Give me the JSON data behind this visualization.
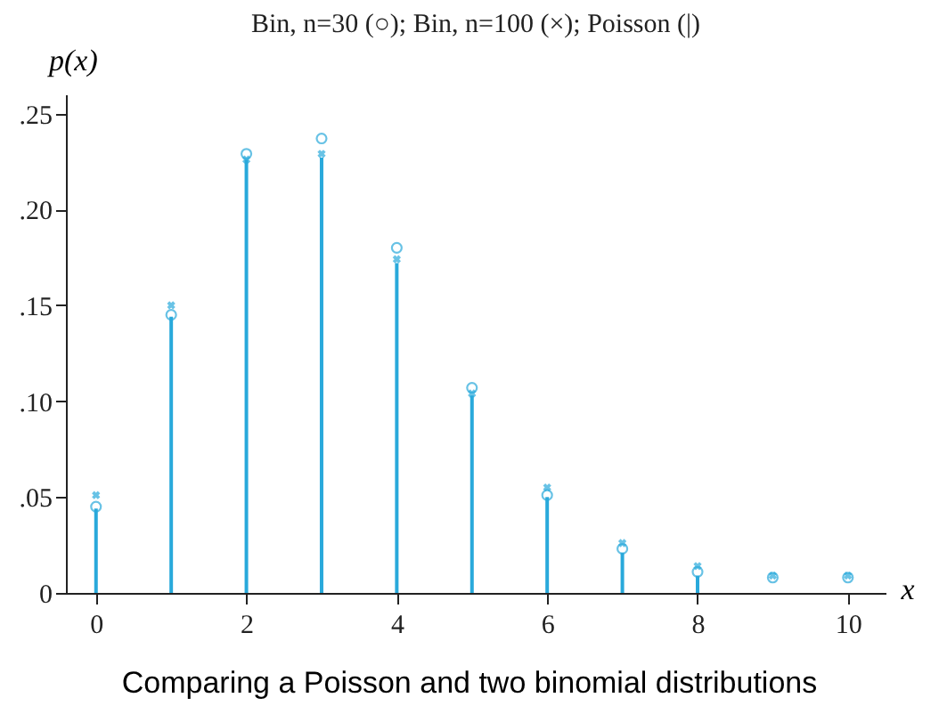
{
  "chart_data": {
    "type": "bar",
    "title": "Bin, n=30 (○); Bin, n=100 (×); Poisson (|)",
    "xlabel": "x",
    "ylabel": "p(x)",
    "annotations": [
      "Comparing a Poisson and two binomial distributions"
    ],
    "x": [
      0,
      1,
      2,
      3,
      4,
      5,
      6,
      7,
      8,
      9,
      10
    ],
    "xlim": [
      -0.4,
      10.5
    ],
    "xticks": [
      0,
      2,
      4,
      6,
      8,
      10
    ],
    "ylim": [
      0,
      0.26
    ],
    "yticks": [
      {
        "value": 0,
        "label": "0"
      },
      {
        "value": 0.05,
        "label": ".05"
      },
      {
        "value": 0.1,
        "label": ".10"
      },
      {
        "value": 0.15,
        "label": ".15"
      },
      {
        "value": 0.2,
        "label": ".20"
      },
      {
        "value": 0.25,
        "label": ".25"
      }
    ],
    "grid": false,
    "series": [
      {
        "color": "#29a9db",
        "values": [
          0.044,
          0.144,
          0.226,
          0.227,
          0.172,
          0.103,
          0.05,
          0.021,
          0.009,
          null,
          null
        ]
      },
      {
        "type": "scatter",
        "marker": "circle",
        "color": "#29a9db",
        "values": [
          0.045,
          0.145,
          0.229,
          0.237,
          0.18,
          0.107,
          0.051,
          0.023,
          0.011,
          0.008,
          0.008
        ]
      },
      {
        "type": "scatter",
        "marker": "cross",
        "color": "#29a9db",
        "values": [
          0.051,
          0.15,
          0.226,
          0.229,
          0.174,
          0.104,
          0.055,
          0.026,
          0.014,
          0.009,
          0.009
        ]
      }
    ]
  }
}
